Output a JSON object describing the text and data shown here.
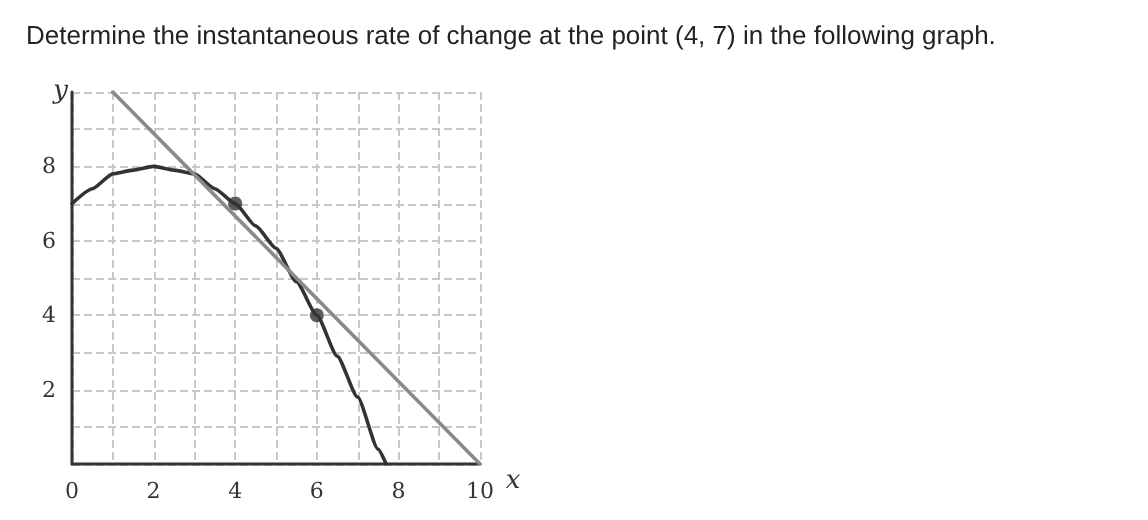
{
  "chart_data": {
    "type": "line",
    "title": "Determine the instantaneous rate of change at the point (4, 7) in the following graph.",
    "xlabel": "x",
    "ylabel": "y",
    "series": [
      {
        "color": "#333333",
        "x": [
          0,
          0.5,
          1,
          1.5,
          2,
          2.5,
          3,
          3.5,
          4,
          4.5,
          5,
          5.5,
          6,
          6.5,
          7,
          7.5,
          7.7
        ],
        "values": [
          7,
          7.4,
          7.8,
          7.9,
          8,
          7.9,
          7.8,
          7.4,
          7,
          6.4,
          5.8,
          4.9,
          4,
          2.9,
          1.8,
          0.4,
          0
        ]
      },
      {
        "color": "#8a8a8a",
        "x": [
          1,
          10
        ],
        "values": [
          10,
          0
        ]
      },
      {
        "type": "scatter",
        "color": "#333333",
        "marker": "circle",
        "x": [
          4,
          6
        ],
        "values": [
          7,
          4
        ]
      }
    ],
    "marker": "none",
    "line_style": "solid",
    "grid": true,
    "xlim": [
      0,
      10
    ],
    "ylim": [
      0,
      10
    ],
    "xticks": [
      0,
      {
        "value": 1,
        "label": null
      },
      2,
      {
        "value": 3,
        "label": null
      },
      4,
      {
        "value": 5,
        "label": null
      },
      6,
      {
        "value": 7,
        "label": null
      },
      8,
      {
        "value": 9,
        "label": null
      },
      10
    ],
    "yticks": [
      {
        "value": 0,
        "label": null
      },
      {
        "value": 1,
        "label": null
      },
      2,
      {
        "value": 3,
        "label": null
      },
      4,
      {
        "value": 5,
        "label": null
      },
      6,
      {
        "value": 7,
        "label": null
      },
      8,
      {
        "value": 9,
        "label": null
      },
      {
        "value": 10,
        "label": null
      }
    ]
  }
}
